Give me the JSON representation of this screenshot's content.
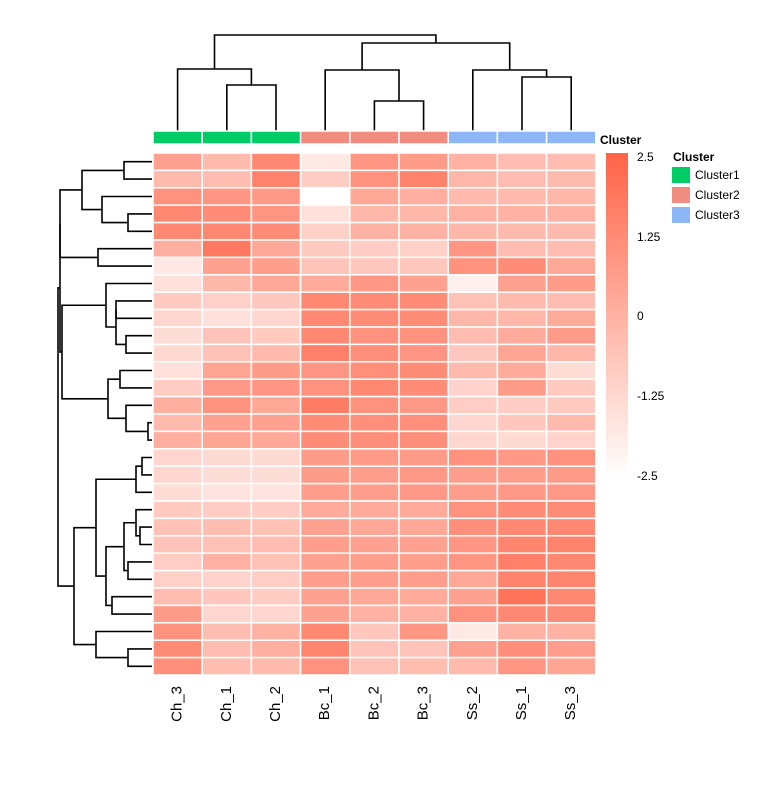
{
  "chart_data": {
    "type": "heatmap",
    "title": "",
    "columns": [
      "Ch_3",
      "Ch_1",
      "Ch_2",
      "Bc_1",
      "Bc_2",
      "Bc_3",
      "Ss_2",
      "Ss_1",
      "Ss_3"
    ],
    "column_cluster": [
      "Cluster1",
      "Cluster1",
      "Cluster1",
      "Cluster2",
      "Cluster2",
      "Cluster2",
      "Cluster3",
      "Cluster3",
      "Cluster3"
    ],
    "annotation": {
      "title": "Cluster",
      "legend_title": "Cluster",
      "levels": [
        "Cluster1",
        "Cluster2",
        "Cluster3"
      ],
      "colors": {
        "Cluster1": "#00cc66",
        "Cluster2": "#f08c80",
        "Cluster3": "#8cb6f6"
      }
    },
    "color_scale": {
      "min": -2.5,
      "max": 2.5,
      "low_color": "#ffffff",
      "high_color": "#ff6347",
      "ticks": [
        "2.5",
        "1.25",
        "0",
        "-1.25",
        "-2.5"
      ]
    },
    "values": [
      [
        0.5,
        -0.3,
        1.3,
        -1.8,
        0.9,
        0.7,
        0.0,
        -0.4,
        -0.4
      ],
      [
        -0.3,
        -0.4,
        1.5,
        -0.9,
        1.0,
        1.5,
        -0.2,
        -0.4,
        -0.3
      ],
      [
        1.0,
        0.9,
        0.8,
        -2.5,
        0.3,
        0.1,
        -0.3,
        -0.3,
        -0.2
      ],
      [
        1.3,
        1.2,
        0.9,
        -1.5,
        -0.2,
        -0.2,
        0.0,
        0.0,
        0.0
      ],
      [
        1.3,
        1.3,
        1.2,
        -1.0,
        0.0,
        0.0,
        -0.2,
        -0.3,
        -0.3
      ],
      [
        0.1,
        1.8,
        0.3,
        -0.8,
        -0.9,
        -1.0,
        0.9,
        -0.4,
        -0.4
      ],
      [
        -1.8,
        0.5,
        0.6,
        -0.6,
        -0.7,
        -0.7,
        1.0,
        1.2,
        0.3
      ],
      [
        -1.5,
        -0.2,
        0.3,
        0.2,
        0.8,
        0.5,
        -2.0,
        0.5,
        0.7
      ],
      [
        -0.8,
        -1.0,
        -0.7,
        1.3,
        1.2,
        1.2,
        -0.5,
        -0.3,
        -0.4
      ],
      [
        -1.2,
        -1.5,
        -1.2,
        1.3,
        1.2,
        1.2,
        -0.2,
        -0.2,
        0.2
      ],
      [
        -1.4,
        -0.6,
        -0.8,
        1.3,
        1.0,
        1.0,
        -0.4,
        0.2,
        0.7
      ],
      [
        -1.3,
        -0.5,
        -0.3,
        1.6,
        1.1,
        0.9,
        -0.7,
        0.4,
        -0.2
      ],
      [
        -1.5,
        0.4,
        0.7,
        0.9,
        1.1,
        1.2,
        -0.3,
        0.2,
        -1.4
      ],
      [
        -0.9,
        0.8,
        0.9,
        1.0,
        1.3,
        1.2,
        -1.1,
        0.7,
        -0.8
      ],
      [
        0.1,
        1.0,
        0.3,
        1.7,
        1.0,
        0.8,
        -0.9,
        -0.9,
        -0.8
      ],
      [
        -0.3,
        0.5,
        0.5,
        1.2,
        1.1,
        1.1,
        -1.2,
        -0.7,
        -0.3
      ],
      [
        0.1,
        0.4,
        0.3,
        1.2,
        1.1,
        1.1,
        -1.2,
        -1.3,
        -1.1
      ],
      [
        -1.2,
        -1.3,
        -1.3,
        0.7,
        0.7,
        0.7,
        1.0,
        0.8,
        1.0
      ],
      [
        -1.2,
        -1.4,
        -1.4,
        0.7,
        0.6,
        0.8,
        0.6,
        0.6,
        0.7
      ],
      [
        -1.4,
        -1.6,
        -1.6,
        0.6,
        0.6,
        0.8,
        0.6,
        0.8,
        0.8
      ],
      [
        -0.8,
        -0.9,
        -0.9,
        0.2,
        0.2,
        0.2,
        1.0,
        1.2,
        1.2
      ],
      [
        -0.5,
        -0.4,
        -0.5,
        0.5,
        0.3,
        0.3,
        1.1,
        1.3,
        1.3
      ],
      [
        -0.6,
        -0.5,
        -0.4,
        0.6,
        0.5,
        0.5,
        0.9,
        1.4,
        1.5
      ],
      [
        -0.9,
        0.0,
        -0.5,
        0.5,
        0.6,
        0.6,
        0.9,
        1.6,
        1.3
      ],
      [
        -1.0,
        -1.1,
        -0.9,
        0.6,
        0.6,
        0.6,
        0.3,
        1.5,
        1.4
      ],
      [
        -0.4,
        -0.7,
        -0.9,
        0.5,
        0.3,
        0.2,
        0.5,
        2.0,
        1.3
      ],
      [
        0.7,
        -1.2,
        -1.2,
        0.5,
        0.0,
        0.0,
        1.0,
        1.3,
        1.2
      ],
      [
        1.0,
        -0.4,
        0.0,
        1.3,
        -0.7,
        0.9,
        -1.8,
        0.0,
        0.0
      ],
      [
        1.2,
        -0.4,
        0.1,
        1.4,
        -0.6,
        -0.6,
        0.5,
        1.1,
        0.6
      ],
      [
        1.1,
        -0.4,
        -0.3,
        1.0,
        -0.5,
        -0.4,
        -0.3,
        0.9,
        0.4
      ]
    ]
  }
}
